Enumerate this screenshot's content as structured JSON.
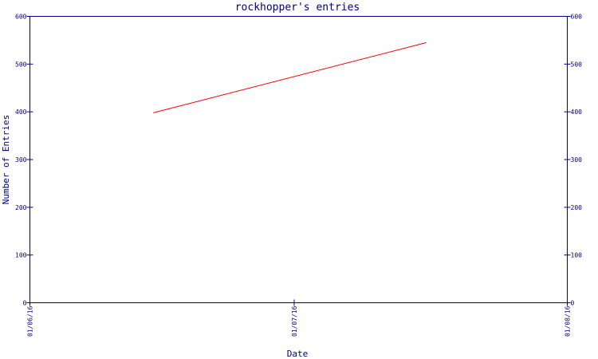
{
  "chart_data": {
    "type": "line",
    "title": "rockhopper's entries",
    "xlabel": "Date",
    "ylabel": "Number of Entries",
    "ylim": [
      0,
      600
    ],
    "y_ticks": [
      0,
      100,
      200,
      300,
      400,
      500,
      600
    ],
    "x_ticks": [
      "01/06/16",
      "01/07/16",
      "01/08/16"
    ],
    "x_tick_dates": [
      "2016-06-01",
      "2016-07-01",
      "2016-08-01"
    ],
    "y_axis_right": true,
    "grid": false,
    "series": [
      {
        "color": "#ff0000",
        "points": [
          {
            "date": "2016-06-15",
            "value": 398
          },
          {
            "date": "2016-07-16",
            "value": 545
          }
        ]
      }
    ],
    "colors": {
      "axis": "#000080",
      "text": "#000080",
      "line": "#ff0000",
      "background": "#ffffff"
    }
  }
}
